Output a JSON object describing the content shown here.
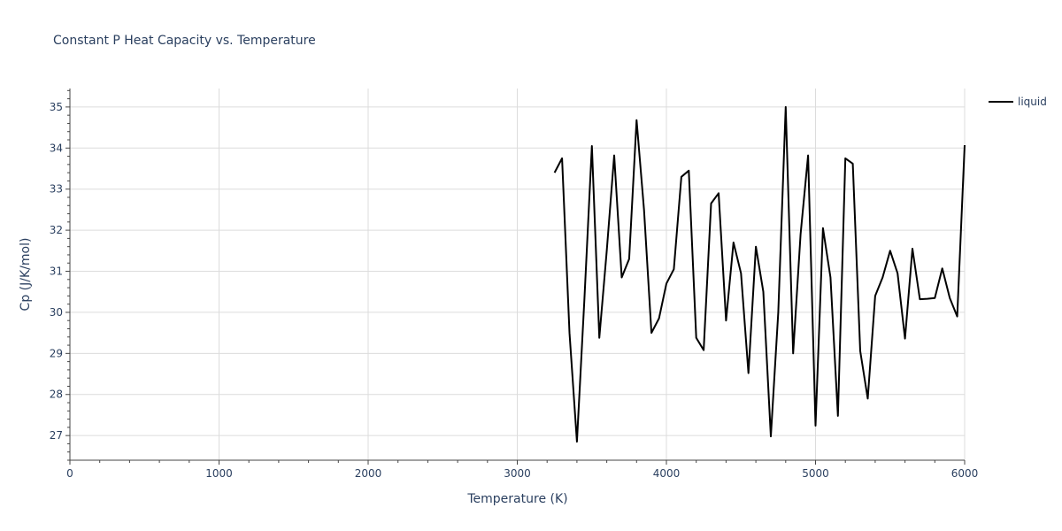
{
  "chart_data": {
    "type": "line",
    "title": "Constant P Heat Capacity vs. Temperature",
    "xlabel": "Temperature (K)",
    "ylabel": "Cp (J/K/mol)",
    "xlim": [
      0,
      6000
    ],
    "ylim": [
      26.4,
      35.45
    ],
    "x_ticks": [
      0,
      1000,
      2000,
      3000,
      4000,
      5000,
      6000
    ],
    "y_ticks": [
      27,
      28,
      29,
      30,
      31,
      32,
      33,
      34,
      35
    ],
    "grid": true,
    "legend_position": "top-right",
    "line_color": "#000000",
    "series": [
      {
        "name": "liquid",
        "x": [
          3250,
          3300,
          3350,
          3400,
          3450,
          3500,
          3550,
          3600,
          3650,
          3700,
          3750,
          3800,
          3850,
          3900,
          3950,
          4000,
          4050,
          4100,
          4150,
          4200,
          4250,
          4300,
          4350,
          4400,
          4450,
          4500,
          4550,
          4600,
          4650,
          4700,
          4750,
          4800,
          4850,
          4900,
          4950,
          5000,
          5050,
          5100,
          5150,
          5200,
          5250,
          5300,
          5350,
          5400,
          5450,
          5500,
          5550,
          5600,
          5650,
          5700,
          5750,
          5800,
          5850,
          5900,
          5950,
          6000
        ],
        "y": [
          33.4,
          33.75,
          29.5,
          26.85,
          30.3,
          34.05,
          29.38,
          31.5,
          33.82,
          30.85,
          31.3,
          34.68,
          32.5,
          29.5,
          29.85,
          30.7,
          31.05,
          33.3,
          33.45,
          29.38,
          29.08,
          32.65,
          32.9,
          29.8,
          31.7,
          30.95,
          28.52,
          31.6,
          30.5,
          26.98,
          30.0,
          35.0,
          29.0,
          31.9,
          33.82,
          27.24,
          32.05,
          30.85,
          27.48,
          33.75,
          33.62,
          29.06,
          27.9,
          30.4,
          30.85,
          31.5,
          30.95,
          29.36,
          31.55,
          30.32,
          30.33,
          30.35,
          31.07,
          30.35,
          29.9,
          34.07
        ]
      }
    ]
  }
}
